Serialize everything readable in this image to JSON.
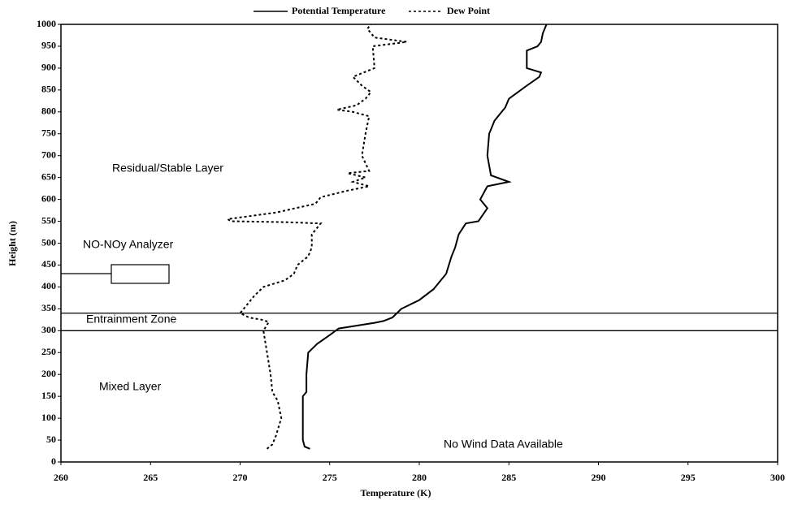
{
  "chart_data": {
    "type": "line",
    "x_label": "Temperature (K)",
    "y_label": "Height (m)",
    "xlim": [
      260,
      300
    ],
    "xticks": [
      260,
      265,
      270,
      275,
      280,
      285,
      290,
      295,
      300
    ],
    "ylim": [
      0,
      1000
    ],
    "yticks": [
      0,
      50,
      100,
      150,
      200,
      250,
      300,
      350,
      400,
      450,
      500,
      550,
      600,
      650,
      700,
      750,
      800,
      850,
      900,
      950,
      1000
    ],
    "grid": false,
    "legend": "top",
    "hlines": [
      340,
      300
    ],
    "annotations": [
      "Residual/Stable Layer",
      "NO-NOy Analyzer",
      "Entrainment Zone",
      "Mixed Layer",
      "No Wind Data Available"
    ],
    "series": [
      {
        "name": "Potential Temperature",
        "color": "#000000",
        "style": "solid",
        "x": [
          273.9,
          273.6,
          273.5,
          273.5,
          273.5,
          273.7,
          273.7,
          273.8,
          274.3,
          275,
          275.5,
          277.5,
          278,
          278.5,
          279,
          280,
          280.8,
          281.2,
          281.5,
          281.8,
          282,
          282.2,
          282.6,
          283.3,
          283.8,
          283.4,
          283.8,
          285,
          284,
          283.8,
          283.9,
          284.2,
          284.6,
          284.8,
          285,
          286,
          286.7,
          286.8,
          286,
          286,
          286.6,
          286.8,
          286.9,
          287.1
        ],
        "y": [
          30,
          35,
          50,
          100,
          150,
          160,
          200,
          250,
          270,
          290,
          305,
          318,
          322,
          330,
          350,
          370,
          395,
          415,
          430,
          470,
          490,
          520,
          545,
          550,
          580,
          600,
          630,
          640,
          655,
          700,
          750,
          780,
          800,
          810,
          830,
          860,
          880,
          890,
          900,
          940,
          950,
          960,
          980,
          1000
        ]
      },
      {
        "name": "Dew Point",
        "color": "#000000",
        "style": "dotted",
        "x": [
          271.5,
          271.8,
          272,
          272.3,
          272.1,
          271.8,
          271.7,
          271.5,
          271.3,
          271.6,
          271.2,
          270.5,
          270,
          270.2,
          270.8,
          271.3,
          272.5,
          273,
          273.2,
          273.8,
          274,
          274,
          274.5,
          272.5,
          269.5,
          269.3,
          272,
          274.2,
          274.5,
          276,
          277.2,
          276.3,
          277,
          276,
          277.2,
          276.8,
          277,
          277.2,
          276.3,
          275.4,
          276.5,
          277,
          277.3,
          276.8,
          276.3,
          277.5,
          277.4,
          279.3,
          277.5,
          277.1,
          277.3
        ],
        "y": [
          30,
          40,
          60,
          100,
          140,
          160,
          200,
          250,
          300,
          320,
          325,
          330,
          340,
          350,
          380,
          400,
          415,
          430,
          450,
          470,
          490,
          520,
          545,
          548,
          550,
          555,
          570,
          590,
          605,
          620,
          630,
          640,
          650,
          660,
          665,
          700,
          750,
          790,
          800,
          805,
          815,
          830,
          845,
          860,
          880,
          900,
          950,
          960,
          970,
          990,
          1000
        ]
      }
    ]
  }
}
